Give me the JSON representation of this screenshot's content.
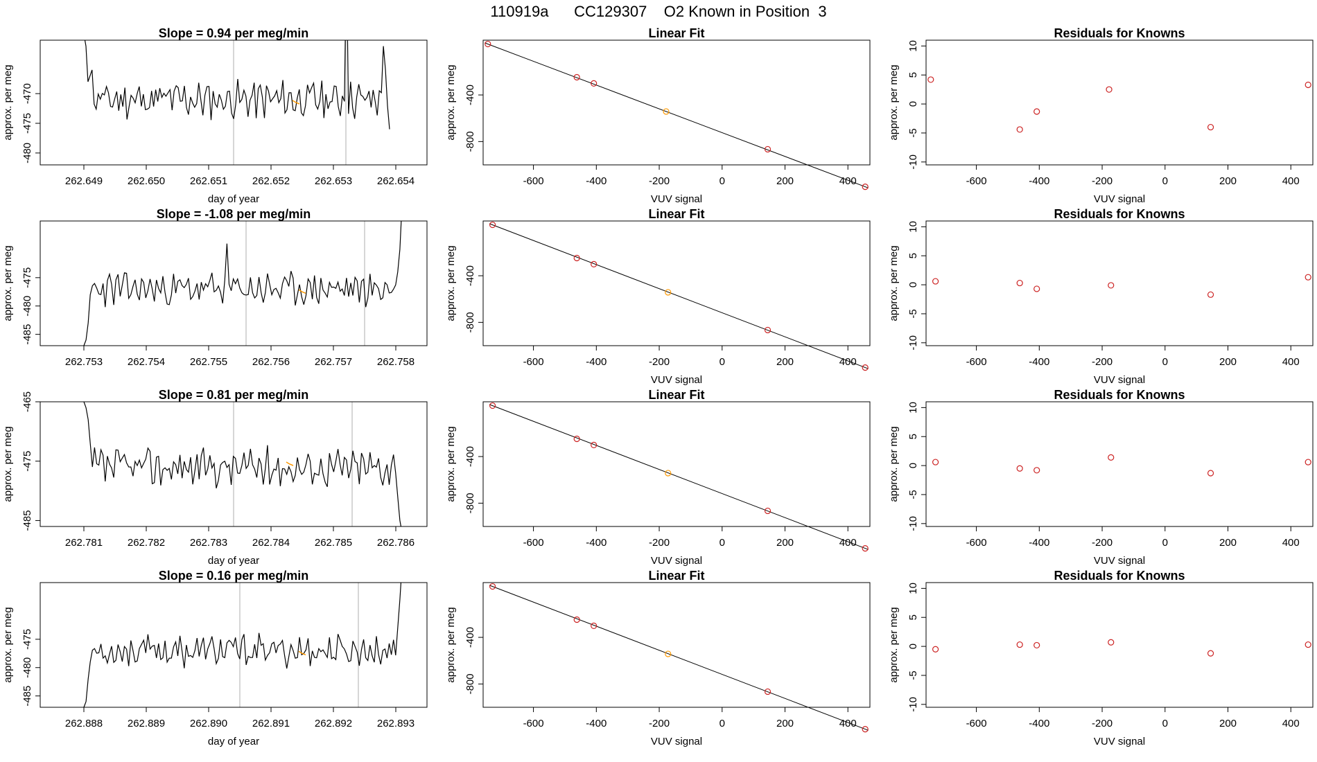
{
  "title": "110919a      CC129307    O2 Known in Position  3",
  "colors": {
    "trace": "#000000",
    "marker": "#ff9900",
    "point": "#cc2222",
    "guide": "#bbbbbb"
  },
  "rows": [
    {
      "time": {
        "title": "Slope =  0.94  per meg/min",
        "xlabel": "day of year",
        "ylabel": "approx. per meg",
        "xlim": [
          262.6483,
          262.6545
        ],
        "ylim": [
          -482,
          -461
        ],
        "xticks": [
          "262.649",
          "262.650",
          "262.651",
          "262.652",
          "262.653",
          "262.654"
        ],
        "yticks": [
          "-470",
          "-475",
          "-480"
        ],
        "guides": [
          262.6514,
          262.6532
        ],
        "marker": [
          262.6524,
          -471.5
        ],
        "trace": {
          "start": 262.649,
          "end": 262.6539,
          "lead": [
            -460,
            -462,
            -468,
            -467,
            -466
          ],
          "tail": [
            -462,
            -466,
            -472,
            -476
          ],
          "base": -471,
          "noise": 2.6,
          "seed": 11,
          "spikes": [
            [
              0.86,
              -446
            ]
          ]
        }
      },
      "fit": {
        "title": "Linear Fit",
        "xlabel": "VUV signal",
        "ylabel": "approx. per meg",
        "xlim": [
          -760,
          470
        ],
        "ylim": [
          -1000,
          70
        ],
        "xticks": [
          "-600",
          "-400",
          "-200",
          "0",
          "200",
          "400"
        ],
        "yticks": [
          "-400",
          "-800"
        ],
        "x": [
          -745,
          -462,
          -408,
          -178,
          145,
          455
        ],
        "y": [
          37,
          -248,
          -301,
          -542,
          -866,
          -1188
        ],
        "line": {
          "slope": -1.013,
          "intercept": -718
        },
        "highlight": 3
      },
      "resid": {
        "title": "Residuals for Knowns",
        "xlabel": "VUV signal",
        "ylabel": "approx. per meg",
        "xlim": [
          -760,
          470
        ],
        "ylim": [
          -10.5,
          11
        ],
        "xticks": [
          "-600",
          "-400",
          "-200",
          "0",
          "200",
          "400"
        ],
        "yticks": [
          "-10",
          "-5",
          "0",
          "5",
          "10"
        ],
        "x": [
          -745,
          -462,
          -408,
          -178,
          145,
          455
        ],
        "y": [
          4.2,
          -4.4,
          -1.3,
          2.5,
          -4.0,
          3.3
        ]
      }
    },
    {
      "time": {
        "title": "Slope =  -1.08  per meg/min",
        "xlabel": "",
        "ylabel": "approx. per meg",
        "xlim": [
          262.7523,
          262.7585
        ],
        "ylim": [
          -487,
          -465
        ],
        "xticks": [
          "262.753",
          "262.754",
          "262.755",
          "262.756",
          "262.757",
          "262.758"
        ],
        "yticks": [
          "-475",
          "-480",
          "-485"
        ],
        "guides": [
          262.7556,
          262.7575
        ],
        "marker": [
          262.7565,
          -477.5
        ],
        "trace": {
          "start": 262.753,
          "end": 262.7581,
          "lead": [
            -487,
            -486,
            -483,
            -478
          ],
          "tail": [
            -474,
            -470,
            -462
          ],
          "base": -477,
          "noise": 2.4,
          "seed": 23,
          "spikes": [
            [
              0.45,
              -469
            ]
          ]
        }
      },
      "fit": {
        "title": "Linear Fit",
        "xlabel": "VUV signal",
        "ylabel": "approx. per meg",
        "xlim": [
          -760,
          470
        ],
        "ylim": [
          -1000,
          70
        ],
        "xticks": [
          "-600",
          "-400",
          "-200",
          "0",
          "200",
          "400"
        ],
        "yticks": [
          "-400",
          "-800"
        ],
        "x": [
          -730,
          -462,
          -408,
          -172,
          145,
          455
        ],
        "y": [
          37,
          -248,
          -301,
          -542,
          -866,
          -1188
        ],
        "line": {
          "slope": -1.02,
          "intercept": -715
        },
        "highlight": 3
      },
      "resid": {
        "title": "Residuals for Knowns",
        "xlabel": "VUV signal",
        "ylabel": "approx. per meg",
        "xlim": [
          -760,
          470
        ],
        "ylim": [
          -10.5,
          11
        ],
        "xticks": [
          "-600",
          "-400",
          "-200",
          "0",
          "200",
          "400"
        ],
        "yticks": [
          "-10",
          "-5",
          "0",
          "5",
          "10"
        ],
        "x": [
          -730,
          -462,
          -408,
          -172,
          145,
          455
        ],
        "y": [
          0.6,
          0.3,
          -0.7,
          -0.1,
          -1.7,
          1.3
        ]
      }
    },
    {
      "time": {
        "title": "Slope =  0.81  per meg/min",
        "xlabel": "day of year",
        "ylabel": "approx. per meg",
        "xlim": [
          262.7803,
          262.7865
        ],
        "ylim": [
          -486,
          -465
        ],
        "xticks": [
          "262.781",
          "262.782",
          "262.783",
          "262.784",
          "262.785",
          "262.786"
        ],
        "yticks": [
          "-465",
          "-475",
          "-485"
        ],
        "guides": [
          262.7834,
          262.7853
        ],
        "marker": [
          262.7843,
          -475.5
        ],
        "trace": {
          "start": 262.781,
          "end": 262.7861,
          "lead": [
            -465,
            -466,
            -468,
            -472
          ],
          "tail": [
            -477,
            -481,
            -485,
            -487
          ],
          "base": -476,
          "noise": 2.7,
          "seed": 37,
          "spikes": []
        }
      },
      "fit": {
        "title": "Linear Fit",
        "xlabel": "VUV signal",
        "ylabel": "approx. per meg",
        "xlim": [
          -760,
          470
        ],
        "ylim": [
          -1000,
          70
        ],
        "xticks": [
          "-600",
          "-400",
          "-200",
          "0",
          "200",
          "400"
        ],
        "yticks": [
          "-400",
          "-800"
        ],
        "x": [
          -730,
          -462,
          -408,
          -172,
          145,
          455
        ],
        "y": [
          37,
          -248,
          -301,
          -542,
          -866,
          -1188
        ],
        "line": {
          "slope": -1.02,
          "intercept": -715
        },
        "highlight": 3
      },
      "resid": {
        "title": "Residuals for Knowns",
        "xlabel": "VUV signal",
        "ylabel": "approx. per meg",
        "xlim": [
          -760,
          470
        ],
        "ylim": [
          -10.5,
          11
        ],
        "xticks": [
          "-600",
          "-400",
          "-200",
          "0",
          "200",
          "400"
        ],
        "yticks": [
          "-10",
          "-5",
          "0",
          "5",
          "10"
        ],
        "x": [
          -730,
          -462,
          -408,
          -172,
          145,
          455
        ],
        "y": [
          0.6,
          -0.5,
          -0.8,
          1.4,
          -1.3,
          0.6
        ]
      }
    },
    {
      "time": {
        "title": "Slope =  0.16  per meg/min",
        "xlabel": "day of year",
        "ylabel": "approx. per meg",
        "xlim": [
          262.8873,
          262.8935
        ],
        "ylim": [
          -487,
          -465
        ],
        "xticks": [
          "262.888",
          "262.889",
          "262.890",
          "262.891",
          "262.892",
          "262.893"
        ],
        "yticks": [
          "-475",
          "-480",
          "-485"
        ],
        "guides": [
          262.8905,
          262.8924
        ],
        "marker": [
          262.8915,
          -477.5
        ],
        "trace": {
          "start": 262.888,
          "end": 262.8931,
          "lead": [
            -487,
            -486,
            -482,
            -479
          ],
          "tail": [
            -473,
            -468,
            -462
          ],
          "base": -477,
          "noise": 2.3,
          "seed": 53,
          "spikes": []
        }
      },
      "fit": {
        "title": "Linear Fit",
        "xlabel": "VUV signal",
        "ylabel": "approx. per meg",
        "xlim": [
          -760,
          470
        ],
        "ylim": [
          -1000,
          70
        ],
        "xticks": [
          "-600",
          "-400",
          "-200",
          "0",
          "200",
          "400"
        ],
        "yticks": [
          "-400",
          "-800"
        ],
        "x": [
          -730,
          -462,
          -408,
          -172,
          145,
          455
        ],
        "y": [
          37,
          -248,
          -301,
          -542,
          -866,
          -1188
        ],
        "line": {
          "slope": -1.02,
          "intercept": -715
        },
        "highlight": 3
      },
      "resid": {
        "title": "Residuals for Knowns",
        "xlabel": "VUV signal",
        "ylabel": "approx. per meg",
        "xlim": [
          -760,
          470
        ],
        "ylim": [
          -10.5,
          11
        ],
        "xticks": [
          "-600",
          "-400",
          "-200",
          "0",
          "200",
          "400"
        ],
        "yticks": [
          "-10",
          "-5",
          "0",
          "5",
          "10"
        ],
        "x": [
          -730,
          -462,
          -408,
          -172,
          145,
          455
        ],
        "y": [
          -0.5,
          0.3,
          0.2,
          0.7,
          -1.2,
          0.3
        ]
      }
    }
  ],
  "chart_data": [
    {
      "type": "line",
      "title": "Slope =  0.94  per meg/min",
      "xlabel": "day of year",
      "ylabel": "approx. per meg",
      "xlim": [
        262.6483,
        262.6545
      ],
      "ylim": [
        -482,
        -461
      ],
      "grid": false
    },
    {
      "type": "scatter",
      "title": "Linear Fit",
      "xlabel": "VUV signal",
      "ylabel": "approx. per meg",
      "x": [
        -745,
        -462,
        -408,
        -178,
        145,
        455
      ],
      "y": [
        37,
        -248,
        -301,
        -542,
        -866,
        -1188
      ]
    },
    {
      "type": "scatter",
      "title": "Residuals for Knowns",
      "xlabel": "VUV signal",
      "ylabel": "approx. per meg",
      "x": [
        -745,
        -462,
        -408,
        -178,
        145,
        455
      ],
      "y": [
        4.2,
        -4.4,
        -1.3,
        2.5,
        -4.0,
        3.3
      ]
    },
    {
      "type": "line",
      "title": "Slope =  -1.08  per meg/min",
      "xlabel": "",
      "ylabel": "approx. per meg",
      "xlim": [
        262.7523,
        262.7585
      ],
      "ylim": [
        -487,
        -465
      ],
      "grid": false
    },
    {
      "type": "scatter",
      "title": "Linear Fit",
      "xlabel": "VUV signal",
      "ylabel": "approx. per meg",
      "x": [
        -730,
        -462,
        -408,
        -172,
        145,
        455
      ],
      "y": [
        37,
        -248,
        -301,
        -542,
        -866,
        -1188
      ]
    },
    {
      "type": "scatter",
      "title": "Residuals for Knowns",
      "xlabel": "VUV signal",
      "ylabel": "approx. per meg",
      "x": [
        -730,
        -462,
        -408,
        -172,
        145,
        455
      ],
      "y": [
        0.6,
        0.3,
        -0.7,
        -0.1,
        -1.7,
        1.3
      ]
    },
    {
      "type": "line",
      "title": "Slope =  0.81  per meg/min",
      "xlabel": "day of year",
      "ylabel": "approx. per meg",
      "xlim": [
        262.7803,
        262.7865
      ],
      "ylim": [
        -486,
        -465
      ],
      "grid": false
    },
    {
      "type": "scatter",
      "title": "Linear Fit",
      "xlabel": "VUV signal",
      "ylabel": "approx. per meg",
      "x": [
        -730,
        -462,
        -408,
        -172,
        145,
        455
      ],
      "y": [
        37,
        -248,
        -301,
        -542,
        -866,
        -1188
      ]
    },
    {
      "type": "scatter",
      "title": "Residuals for Knowns",
      "xlabel": "VUV signal",
      "ylabel": "approx. per meg",
      "x": [
        -730,
        -462,
        -408,
        -172,
        145,
        455
      ],
      "y": [
        0.6,
        -0.5,
        -0.8,
        1.4,
        -1.3,
        0.6
      ]
    },
    {
      "type": "line",
      "title": "Slope =  0.16  per meg/min",
      "xlabel": "day of year",
      "ylabel": "approx. per meg",
      "xlim": [
        262.8873,
        262.8935
      ],
      "ylim": [
        -487,
        -465
      ],
      "grid": false
    },
    {
      "type": "scatter",
      "title": "Linear Fit",
      "xlabel": "VUV signal",
      "ylabel": "approx. per meg",
      "x": [
        -730,
        -462,
        -408,
        -172,
        145,
        455
      ],
      "y": [
        37,
        -248,
        -301,
        -542,
        -866,
        -1188
      ]
    },
    {
      "type": "scatter",
      "title": "Residuals for Knowns",
      "xlabel": "VUV signal",
      "ylabel": "approx. per meg",
      "x": [
        -730,
        -462,
        -408,
        -172,
        145,
        455
      ],
      "y": [
        -0.5,
        0.3,
        0.2,
        0.7,
        -1.2,
        0.3
      ]
    }
  ]
}
